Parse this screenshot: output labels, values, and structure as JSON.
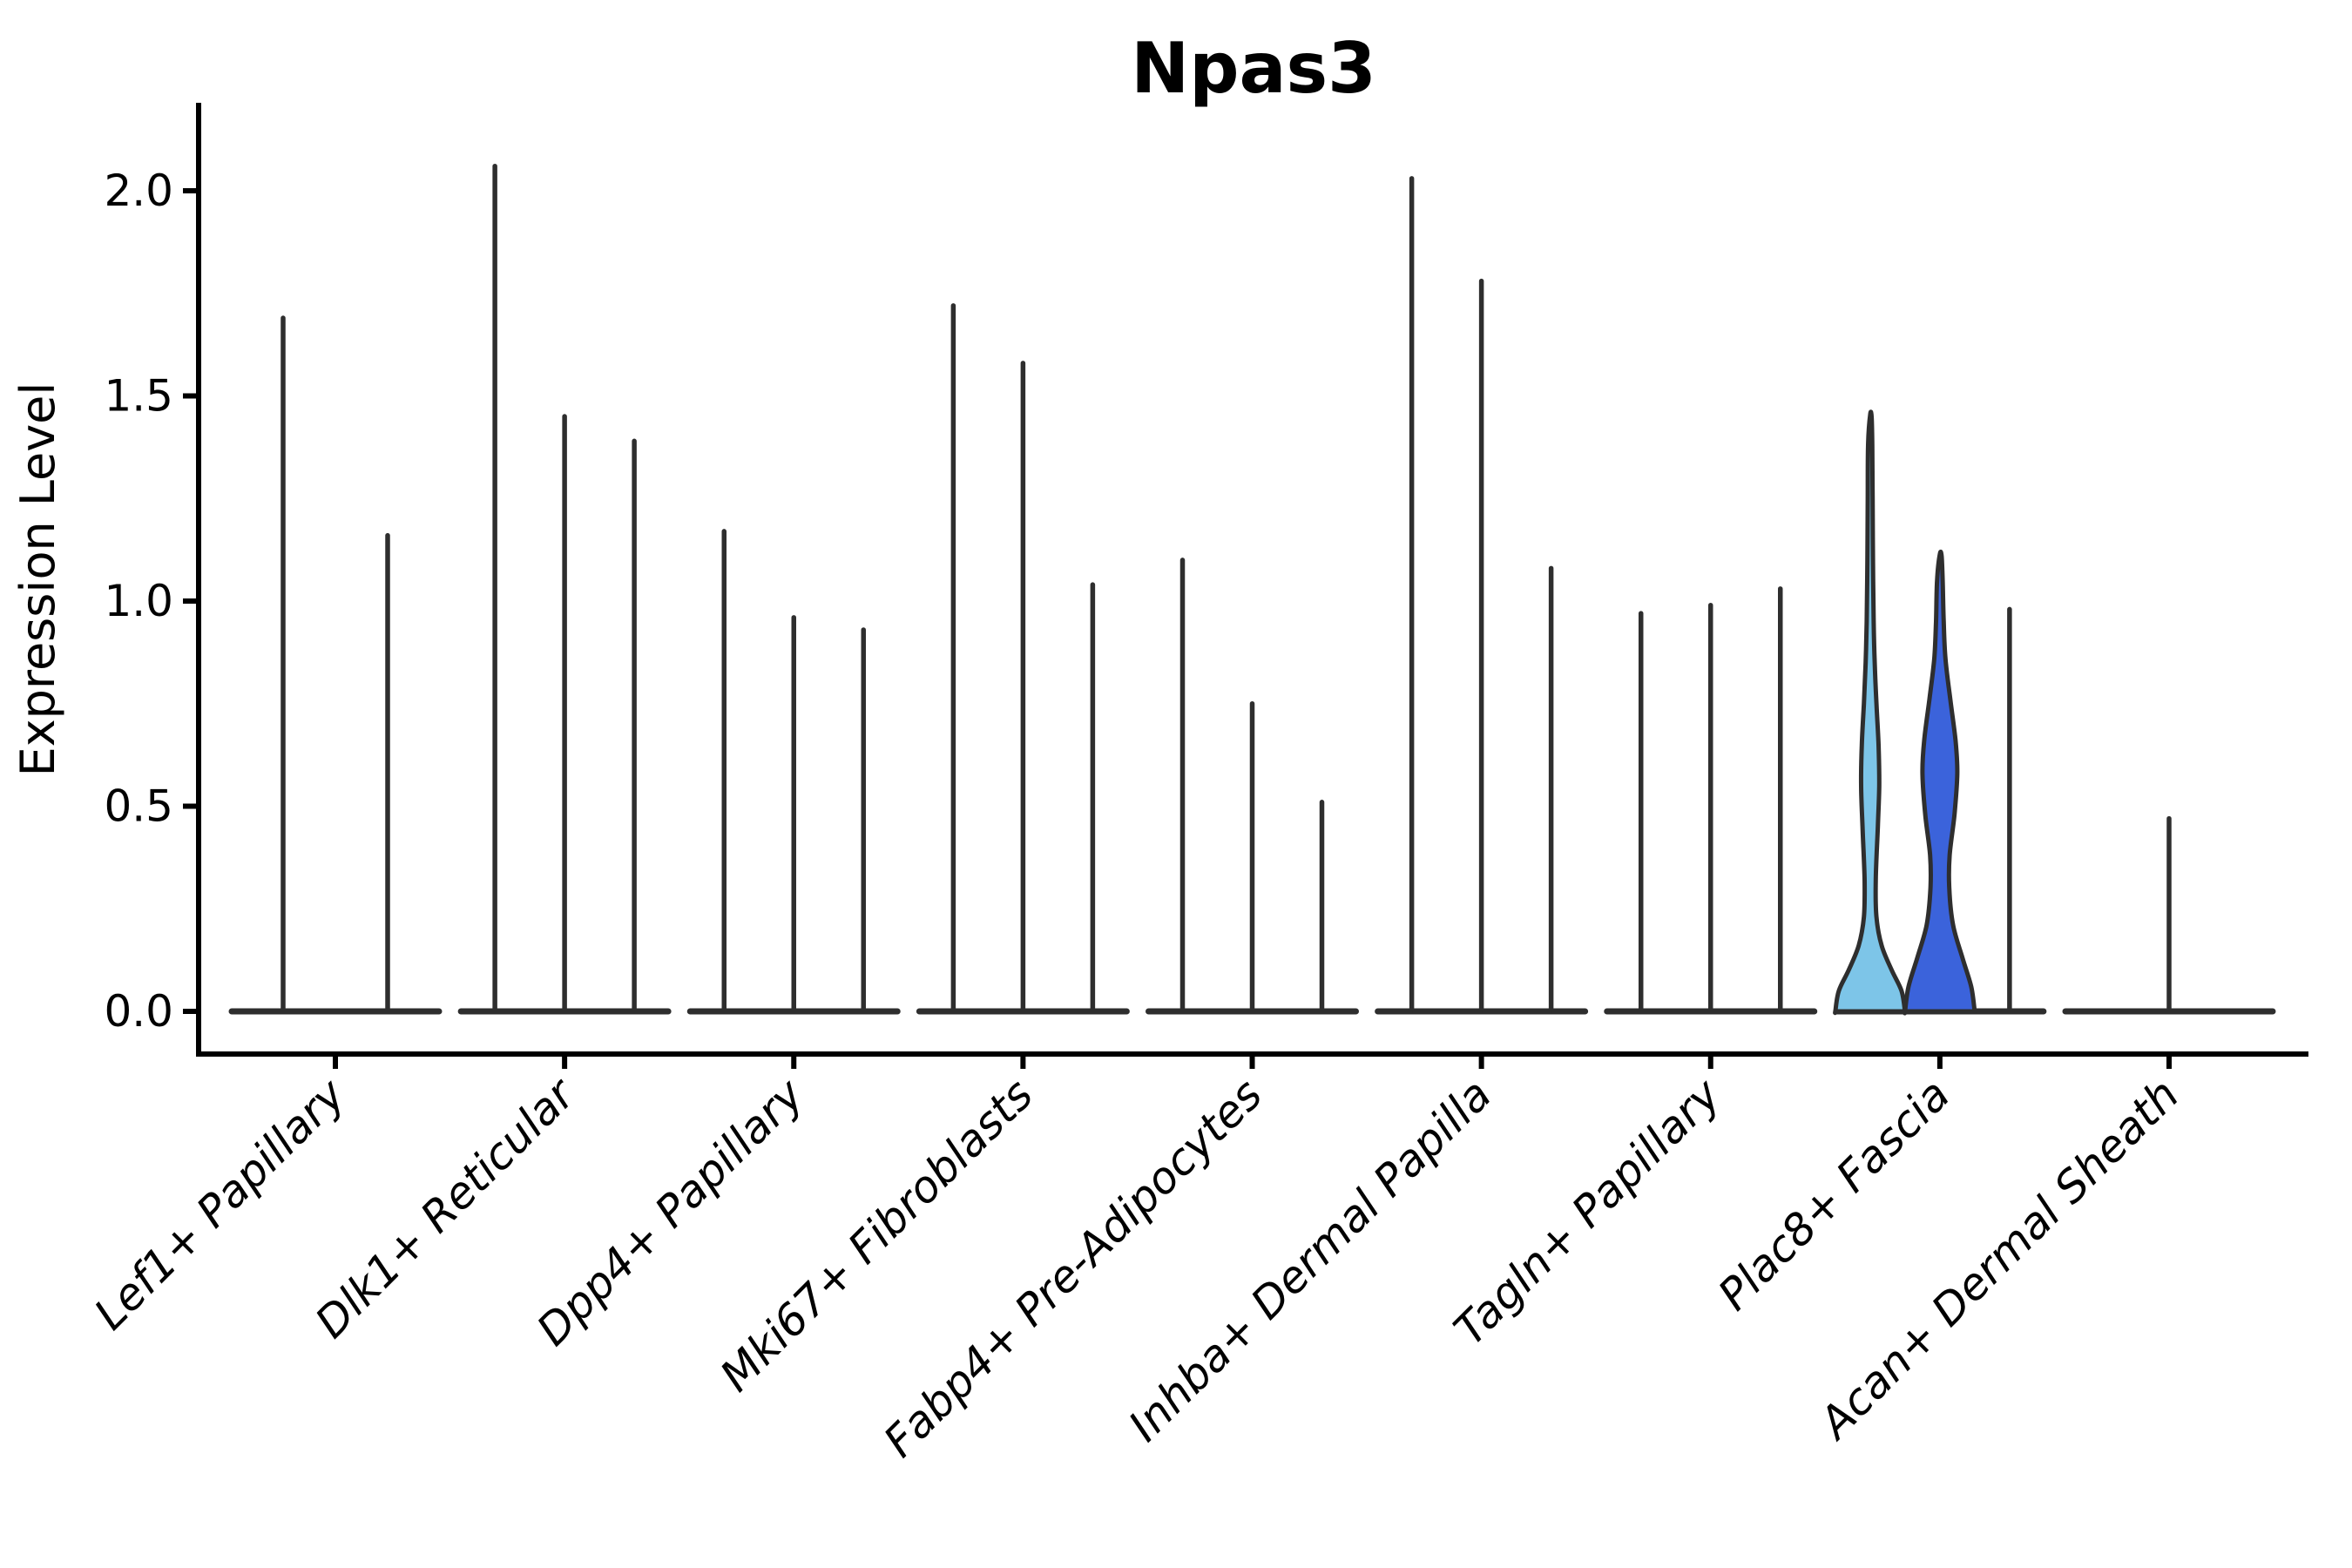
{
  "chart_data": {
    "type": "violin",
    "title": "Npas3",
    "ylabel": "Expression Level",
    "xlabel": "",
    "grid": false,
    "legend": "none",
    "background": "#ffffff",
    "ylim": [
      -0.1,
      2.21
    ],
    "yticks": {
      "values": [
        0.0,
        0.5,
        1.0,
        1.5,
        2.0
      ],
      "labels": [
        "0.0",
        "0.5",
        "1.0",
        "1.5",
        "2.0"
      ]
    },
    "colors": {
      "axis": "#000000",
      "violin_stroke": "#2e2e2e",
      "plac8_fascia_split1_fill": "#7DC5E8",
      "plac8_fascia_split2_fill": "#3B63DB"
    },
    "categories": [
      "Lef1+ Papillary",
      "Dlk1+ Reticular",
      "Dpp4+ Papillary",
      "Mki67+ Fibroblasts",
      "Fabp4+ Pre-Adipocytes",
      "Inhba+ Dermal Papilla",
      "Tagln+ Papillary",
      "Plac8+ Fascia",
      "Acan+ Dermal Sheath"
    ],
    "groups": [
      {
        "label": "Lef1+ Papillary",
        "violins": [
          {
            "max": 1.69
          },
          {
            "max": 1.16
          }
        ]
      },
      {
        "label": "Dlk1+ Reticular",
        "violins": [
          {
            "max": 2.06
          },
          {
            "max": 1.45
          },
          {
            "max": 1.39
          }
        ]
      },
      {
        "label": "Dpp4+ Papillary",
        "violins": [
          {
            "max": 1.17
          },
          {
            "max": 0.96
          },
          {
            "max": 0.93
          }
        ]
      },
      {
        "label": "Mki67+ Fibroblasts",
        "violins": [
          {
            "max": 1.72
          },
          {
            "max": 1.58
          },
          {
            "max": 1.04
          }
        ]
      },
      {
        "label": "Fabp4+ Pre-Adipocytes",
        "violins": [
          {
            "max": 1.1
          },
          {
            "max": 0.75
          },
          {
            "max": 0.51
          }
        ]
      },
      {
        "label": "Inhba+ Dermal Papilla",
        "violins": [
          {
            "max": 2.03
          },
          {
            "max": 1.78
          },
          {
            "max": 1.08
          }
        ]
      },
      {
        "label": "Tagln+ Papillary",
        "violins": [
          {
            "max": 0.97
          },
          {
            "max": 0.99
          },
          {
            "max": 1.03
          }
        ]
      },
      {
        "label": "Plac8+ Fascia",
        "violins": [
          {
            "max": 1.45,
            "fill": "#7DC5E8",
            "profile": [
              [
                0,
                1.0
              ],
              [
                0.05,
                0.9
              ],
              [
                0.1,
                0.62
              ],
              [
                0.16,
                0.33
              ],
              [
                0.23,
                0.18
              ],
              [
                0.32,
                0.16
              ],
              [
                0.45,
                0.22
              ],
              [
                0.55,
                0.26
              ],
              [
                0.65,
                0.24
              ],
              [
                0.75,
                0.18
              ],
              [
                0.85,
                0.13
              ],
              [
                0.95,
                0.1
              ],
              [
                1.1,
                0.08
              ],
              [
                1.25,
                0.07
              ],
              [
                1.38,
                0.06
              ],
              [
                1.45,
                0.04
              ]
            ]
          },
          {
            "max": 1.11,
            "fill": "#3B63DB",
            "profile": [
              [
                0,
                1.0
              ],
              [
                0.06,
                0.9
              ],
              [
                0.13,
                0.65
              ],
              [
                0.21,
                0.38
              ],
              [
                0.3,
                0.27
              ],
              [
                0.38,
                0.28
              ],
              [
                0.48,
                0.42
              ],
              [
                0.58,
                0.5
              ],
              [
                0.66,
                0.45
              ],
              [
                0.76,
                0.3
              ],
              [
                0.86,
                0.16
              ],
              [
                0.95,
                0.11
              ],
              [
                1.05,
                0.08
              ],
              [
                1.11,
                0.05
              ]
            ]
          },
          {
            "max": 0.98
          }
        ]
      },
      {
        "label": "Acan+ Dermal Sheath",
        "violins": [
          {
            "max": 0.47
          }
        ]
      }
    ]
  }
}
